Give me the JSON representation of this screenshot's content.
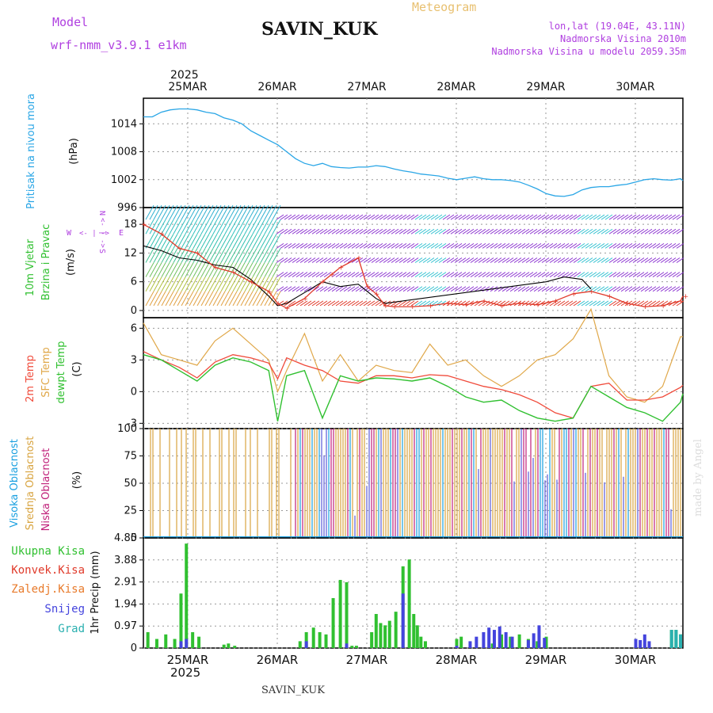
{
  "header": {
    "model_label": "Model",
    "model_name": "wrf-nmm_v3.9.1 e1km",
    "station": "SAVIN_KUK",
    "meteogram_label": "Meteogram",
    "coords": "lon,lat (19.04E, 43.11N)",
    "elevation": "Nadmorska Visina 2010m",
    "model_elevation": "Nadmorska Visina u modelu 2059.35m",
    "footer_station": "SAVIN_KUK",
    "watermark": "made by Angel"
  },
  "colors": {
    "pressure": "#2aa6e6",
    "wind_speed": "#e03a2a",
    "wind_gust": "#000000",
    "temp2m": "#f04a3a",
    "sfc_temp": "#e0a84a",
    "dewpt": "#30c030",
    "high_cloud": "#1aa0e0",
    "mid_cloud": "#d8a440",
    "low_cloud": "#c0207a",
    "total_precip": "#30c030",
    "conv_precip": "#e03a2a",
    "frozen_precip": "#e87a2a",
    "snow": "#4444dd",
    "graupel": "#2ab0b0",
    "label_purple": "#b040e0",
    "title_gold": "#e8c070"
  },
  "top_axis": {
    "year": "2025",
    "dates": [
      "25MAR",
      "26MAR",
      "27MAR",
      "28MAR",
      "29MAR",
      "30MAR"
    ]
  },
  "bottom_axis": {
    "year": "2025",
    "dates": [
      "25MAR",
      "26MAR",
      "27MAR",
      "28MAR",
      "29MAR",
      "30MAR"
    ]
  },
  "wind_compass": {
    "n": "N",
    "s": "S",
    "e": "E",
    "w": "W",
    "sym": "<- | ->"
  },
  "chart_data": [
    {
      "type": "line",
      "panel": "pressure",
      "ylabel_main": "Pritisak na nivou mora",
      "ylabel_unit": "(hPa)",
      "yticks": [
        "1014",
        "1008",
        "1002",
        "996"
      ],
      "ylim": [
        996,
        1019.5
      ],
      "series": [
        {
          "name": "Pritisak na nivou mora",
          "x": [
            0,
            0.1,
            0.2,
            0.3,
            0.4,
            0.5,
            0.6,
            0.7,
            0.8,
            0.9,
            1.0,
            1.1,
            1.2,
            1.3,
            1.4,
            1.5,
            1.6,
            1.7,
            1.8,
            1.9,
            2.0,
            2.1,
            2.2,
            2.3,
            2.4,
            2.5,
            2.6,
            2.7,
            2.8,
            2.9,
            3.0,
            3.1,
            3.2,
            3.3,
            3.4,
            3.5,
            3.6,
            3.7,
            3.8,
            3.9,
            4.0,
            4.1,
            4.2,
            4.3,
            4.4,
            4.5,
            4.6,
            4.7,
            4.8,
            4.9,
            5.0,
            5.1,
            5.2,
            5.3,
            5.4,
            5.5,
            5.6,
            5.7,
            5.8,
            5.9,
            6.0,
            6.05
          ],
          "values": [
            1015.5,
            1015.5,
            1016.5,
            1017.0,
            1017.2,
            1017.2,
            1017.0,
            1016.5,
            1016.2,
            1015.3,
            1014.8,
            1014.0,
            1012.5,
            1011.5,
            1010.5,
            1009.5,
            1008.0,
            1006.5,
            1005.5,
            1005.0,
            1005.5,
            1004.8,
            1004.6,
            1004.5,
            1004.7,
            1004.7,
            1005.0,
            1004.8,
            1004.3,
            1003.9,
            1003.6,
            1003.2,
            1003.0,
            1002.8,
            1002.3,
            1002.0,
            1002.3,
            1002.6,
            1002.2,
            1002.0,
            1002.0,
            1001.8,
            1001.5,
            1000.8,
            1000.0,
            999.0,
            998.5,
            998.4,
            998.8,
            999.8,
            1000.3,
            1000.5,
            1000.5,
            1000.8,
            1001.0,
            1001.5,
            1002.0,
            1002.2,
            1002.0,
            1001.9,
            1002.2,
            1001.8
          ]
        }
      ]
    },
    {
      "type": "line",
      "panel": "wind",
      "ylabel_main": "10m Vjetar",
      "ylabel_sub": "Brzina i Pravac",
      "ylabel_unit": "(m/s)",
      "yticks": [
        "18",
        "12",
        "6",
        "0"
      ],
      "ylim": [
        -1.5,
        21.5
      ],
      "series": [
        {
          "name": "wind_speed",
          "x": [
            0,
            0.2,
            0.4,
            0.6,
            0.8,
            1.0,
            1.2,
            1.4,
            1.5,
            1.6,
            1.8,
            2.0,
            2.1,
            2.2,
            2.4,
            2.5,
            2.6,
            2.7,
            2.8,
            3.0,
            3.2,
            3.4,
            3.6,
            3.8,
            4.0,
            4.2,
            4.4,
            4.6,
            4.8,
            5.0,
            5.2,
            5.4,
            5.6,
            5.8,
            6.0,
            6.05
          ],
          "values": [
            18,
            16,
            13,
            12,
            9,
            8,
            6,
            4,
            1.5,
            0.5,
            2.5,
            6,
            7.5,
            9,
            11,
            5,
            3.5,
            1,
            0.8,
            0.8,
            1.0,
            1.5,
            1.2,
            2,
            1,
            1.5,
            1.2,
            2,
            3.5,
            4,
            3,
            1.5,
            0.8,
            1,
            2,
            3
          ]
        },
        {
          "name": "wind_gust",
          "x": [
            0,
            0.2,
            0.4,
            0.6,
            0.8,
            1.0,
            1.2,
            1.4,
            1.5,
            1.6,
            2.0,
            2.2,
            2.4,
            2.5,
            2.6,
            2.7,
            4.5,
            4.7,
            4.9,
            5.0
          ],
          "values": [
            13.5,
            12.5,
            11.0,
            10.5,
            9.5,
            9.0,
            6.5,
            3.0,
            1.0,
            1.5,
            6.0,
            5.0,
            5.5,
            4.0,
            2.5,
            1.5,
            6.0,
            7.0,
            6.5,
            4.5
          ]
        }
      ]
    },
    {
      "type": "line",
      "panel": "temperature",
      "ylabel_main": "2m Temp",
      "ylabel_sub1": "SFC Temp",
      "ylabel_sub2": "dewpt Temp",
      "ylabel_unit": "(C)",
      "yticks": [
        "6",
        "3",
        "0",
        "-3"
      ],
      "ylim": [
        -3.5,
        7
      ],
      "series": [
        {
          "name": "2m Temp",
          "x": [
            0,
            0.2,
            0.4,
            0.6,
            0.8,
            1.0,
            1.2,
            1.4,
            1.5,
            1.6,
            1.8,
            2.0,
            2.2,
            2.4,
            2.6,
            2.8,
            3.0,
            3.2,
            3.4,
            3.6,
            3.8,
            4.0,
            4.2,
            4.4,
            4.6,
            4.8,
            5.0,
            5.2,
            5.4,
            5.6,
            5.8,
            6.0,
            6.05
          ],
          "values": [
            3.8,
            3.0,
            2.3,
            1.3,
            2.8,
            3.5,
            3.2,
            2.7,
            1.2,
            3.2,
            2.5,
            2.0,
            1.0,
            0.8,
            1.5,
            1.5,
            1.3,
            1.6,
            1.5,
            1.0,
            0.5,
            0.2,
            -0.3,
            -1.0,
            -2.0,
            -2.5,
            0.5,
            0.8,
            -0.8,
            -0.8,
            -0.5,
            0.4,
            0.6
          ]
        },
        {
          "name": "SFC Temp",
          "x": [
            0,
            0.2,
            0.4,
            0.6,
            0.8,
            1.0,
            1.2,
            1.4,
            1.5,
            1.6,
            1.8,
            2.0,
            2.2,
            2.4,
            2.6,
            2.8,
            3.0,
            3.2,
            3.4,
            3.6,
            3.8,
            4.0,
            4.2,
            4.4,
            4.6,
            4.8,
            5.0,
            5.2,
            5.4,
            5.6,
            5.8,
            6.0,
            6.05
          ],
          "values": [
            6.5,
            3.5,
            3.0,
            2.5,
            4.8,
            6.0,
            4.5,
            3.0,
            0.0,
            2.0,
            5.5,
            1.0,
            3.5,
            1.0,
            2.5,
            2.0,
            1.8,
            4.5,
            2.5,
            3.0,
            1.5,
            0.5,
            1.5,
            3.0,
            3.5,
            5.0,
            7.8,
            1.5,
            -0.5,
            -1.0,
            0.5,
            5.2,
            5.2
          ]
        },
        {
          "name": "dewpt Temp",
          "x": [
            0,
            0.2,
            0.4,
            0.6,
            0.8,
            1.0,
            1.2,
            1.4,
            1.5,
            1.6,
            1.8,
            2.0,
            2.2,
            2.4,
            2.6,
            2.8,
            3.0,
            3.2,
            3.4,
            3.6,
            3.8,
            4.0,
            4.2,
            4.4,
            4.6,
            4.8,
            5.0,
            5.2,
            5.4,
            5.6,
            5.8,
            6.0,
            6.05
          ],
          "values": [
            3.5,
            3.0,
            2.0,
            1.0,
            2.5,
            3.2,
            2.8,
            2.0,
            -2.8,
            1.5,
            2.0,
            -2.5,
            1.5,
            1.0,
            1.3,
            1.2,
            1.0,
            1.3,
            0.5,
            -0.5,
            -1.0,
            -0.8,
            -1.8,
            -2.5,
            -2.8,
            -2.5,
            0.5,
            -0.5,
            -1.5,
            -2.0,
            -2.8,
            -1.0,
            -0.2
          ]
        }
      ]
    },
    {
      "type": "bar",
      "panel": "cloud",
      "ylabel_main": "Visoka Oblacnost",
      "ylabel_sub1": "Srednja Oblacnost",
      "ylabel_sub2": "Niska Oblacnost",
      "ylabel_unit": "(%)",
      "yticks": [
        "100",
        "75",
        "50",
        "25",
        "0"
      ],
      "ylim": [
        0,
        100
      ]
    },
    {
      "type": "bar",
      "panel": "precip",
      "ylabel_unit": "1hr Precip (mm)",
      "yticks": [
        "4.85",
        "3.88",
        "2.91",
        "1.94",
        "0.97",
        "0"
      ],
      "ylim": [
        0,
        4.85
      ],
      "legend": [
        "Ukupna Kisa",
        "Konvek.Kisa",
        "Zaledj.Kisa",
        "Snijeg",
        "Grad"
      ],
      "series": [
        {
          "name": "Ukupna Kisa",
          "x": [
            0.05,
            0.15,
            0.25,
            0.35,
            0.42,
            0.48,
            0.55,
            0.62,
            0.9,
            0.95,
            1.02,
            1.75,
            1.82,
            1.9,
            1.97,
            2.04,
            2.12,
            2.2,
            2.27,
            2.33,
            2.38,
            2.55,
            2.6,
            2.65,
            2.7,
            2.75,
            2.82,
            2.9,
            2.97,
            3.02,
            3.06,
            3.1,
            3.15,
            3.5,
            3.55,
            3.9,
            4.0,
            4.1,
            4.2,
            4.3,
            4.4,
            4.5,
            5.9,
            5.95,
            6.0
          ],
          "values": [
            0.7,
            0.4,
            0.6,
            0.4,
            2.4,
            4.6,
            0.7,
            0.5,
            0.15,
            0.2,
            0.1,
            0.3,
            0.7,
            0.9,
            0.7,
            0.6,
            2.2,
            3.0,
            2.9,
            0.1,
            0.1,
            0.7,
            1.5,
            1.1,
            1.0,
            1.2,
            1.6,
            3.6,
            3.9,
            1.5,
            1.0,
            0.5,
            0.3,
            0.4,
            0.5,
            0.2,
            0.6,
            0.5,
            0.6,
            0.4,
            0.3,
            0.5,
            0.8,
            0.8,
            0.6
          ]
        },
        {
          "name": "Snijeg",
          "x": [
            0.42,
            0.48,
            1.82,
            2.27,
            2.9,
            3.5,
            3.65,
            3.72,
            3.8,
            3.86,
            3.92,
            3.98,
            4.05,
            4.12,
            4.3,
            4.36,
            4.42,
            4.48,
            5.5,
            5.55,
            5.6,
            5.65
          ],
          "values": [
            0.3,
            0.4,
            0.3,
            0.2,
            2.4,
            0.1,
            0.3,
            0.5,
            0.7,
            0.9,
            0.8,
            0.95,
            0.7,
            0.5,
            0.35,
            0.65,
            1.0,
            0.45,
            0.4,
            0.35,
            0.6,
            0.3
          ]
        },
        {
          "name": "Grad",
          "x": [
            5.9,
            5.95,
            6.0
          ],
          "values": [
            0.8,
            0.8,
            0.6
          ]
        }
      ]
    }
  ]
}
